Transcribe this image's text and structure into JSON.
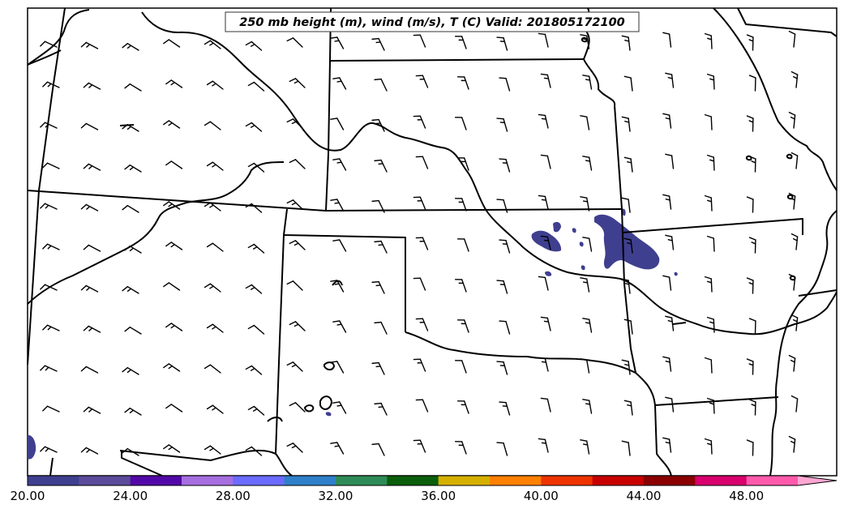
{
  "title": "250 mb height (m), wind (m/s), T (C) Valid: 201805172100",
  "colorbar": {
    "labels": [
      "20.00",
      "24.00",
      "28.00",
      "32.00",
      "36.00",
      "40.00",
      "44.00",
      "48.00"
    ],
    "colors": [
      "#3f3f8f",
      "#5a4c9a",
      "#5208a8",
      "#a66ee0",
      "#6b6bff",
      "#2f7fc9",
      "#2e8b57",
      "#0a5e0a",
      "#d6b000",
      "#ff8000",
      "#ee3300",
      "#c80000",
      "#8b0000",
      "#d9006e",
      "#ff5aab"
    ],
    "extend_color": "#ffa6d2"
  },
  "shading_color": "#3f3f8f"
}
